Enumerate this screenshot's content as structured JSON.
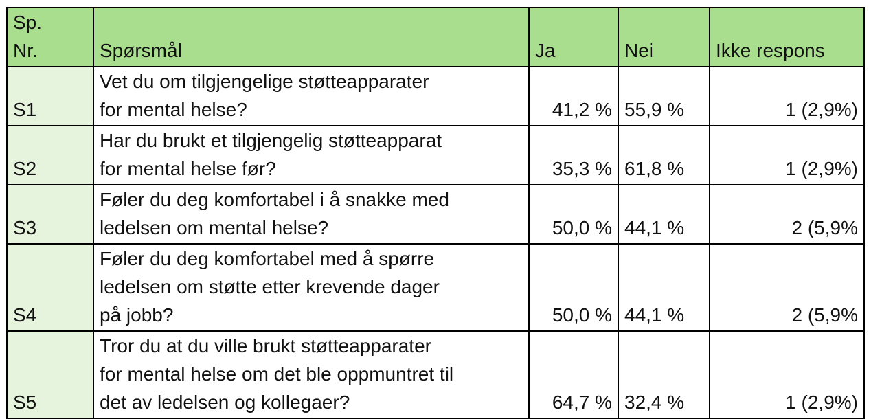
{
  "header": {
    "nr": "Sp.\nNr.",
    "question": "Spørsmål",
    "ja": "Ja",
    "nei": "Nei",
    "ikke_respons": "Ikke respons"
  },
  "rows": [
    {
      "nr": "S1",
      "question": "Vet du om tilgjengelige støtteapparater\nfor mental helse?",
      "ja": "41,2 %",
      "nei": "55,9 %",
      "ikke_respons": "1 (2,9%)"
    },
    {
      "nr": "S2",
      "question": "Har du brukt et tilgjengelig støtteapparat\nfor mental helse før?",
      "ja": "35,3 %",
      "nei": "61,8 %",
      "ikke_respons": "1 (2,9%)"
    },
    {
      "nr": "S3",
      "question": "Føler du deg komfortabel i å snakke med\nledelsen om mental helse?",
      "ja": "50,0 %",
      "nei": "44,1 %",
      "ikke_respons": "2 (5,9%"
    },
    {
      "nr": "S4",
      "question": "Føler du deg komfortabel med å spørre\nledelsen om støtte etter krevende dager\npå jobb?",
      "ja": "50,0 %",
      "nei": "44,1 %",
      "ikke_respons": "2 (5,9%"
    },
    {
      "nr": "S5",
      "question": "Tror du at du ville brukt støtteapparater\nfor mental helse om det ble oppmuntret til\ndet av ledelsen og kollegaer?",
      "ja": "64,7 %",
      "nei": "32,4 %",
      "ikke_respons": "1 (2,9%)"
    }
  ]
}
